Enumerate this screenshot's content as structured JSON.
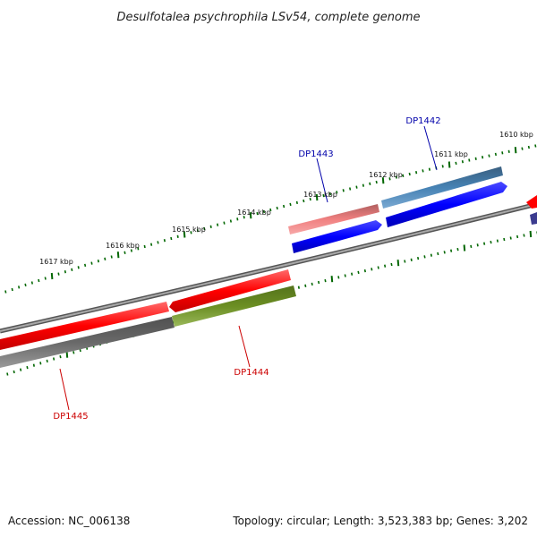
{
  "title": "Desulfotalea psychrophila LSv54, complete genome",
  "footer": {
    "accession": "Accession: NC_006138",
    "topology": "Topology: circular; Length: 3,523,383 bp; Genes: 3,202"
  },
  "ticks": [
    "1610 kbp",
    "1611 kbp",
    "1612 kbp",
    "1613 kbp",
    "1614 kbp",
    "1615 kbp",
    "1616 kbp",
    "1617 kbp"
  ],
  "genes": [
    {
      "name": "DP1442",
      "color": "#0000aa"
    },
    {
      "name": "DP1443",
      "color": "#0000aa"
    },
    {
      "name": "DP1444",
      "color": "#cc0000"
    },
    {
      "name": "DP1445",
      "color": "#cc0000"
    }
  ],
  "colors": {
    "backbone": "#808080",
    "tick": "#006600",
    "red_feature": "#ff0000",
    "blue_feature": "#0000ff",
    "steel_feature": "#4682b4",
    "olive_feature": "#6b8e23",
    "pink_feature": "#f08080",
    "gray_feature": "#696969",
    "navy_feature": "#3b3b8f"
  }
}
